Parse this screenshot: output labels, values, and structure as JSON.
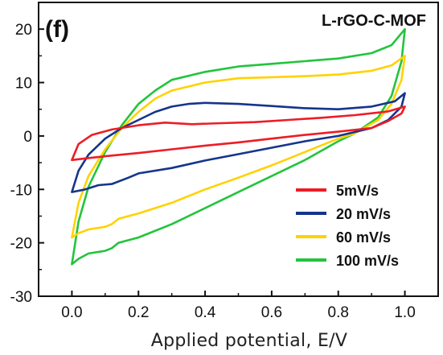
{
  "chart_data": {
    "type": "line",
    "panel_label": "(f)",
    "title": "L-rGO-C-MOF",
    "xlabel": "Applied potential, E/V",
    "ylabel": "",
    "xlim": [
      -0.1,
      1.1
    ],
    "ylim": [
      -30,
      25
    ],
    "x_ticks": [
      "0.0",
      "0.2",
      "0.4",
      "0.6",
      "0.8",
      "1.0"
    ],
    "x_tick_values": [
      0.0,
      0.2,
      0.4,
      0.6,
      0.8,
      1.0
    ],
    "y_ticks": [
      "-30",
      "-20",
      "-10",
      "0",
      "10",
      "20"
    ],
    "y_tick_values": [
      -30,
      -20,
      -10,
      0,
      10,
      20
    ],
    "grid": false,
    "legend_position": "bottom-right",
    "series": [
      {
        "name": "5mV/s",
        "color": "#ee1c25",
        "points": [
          [
            0.0,
            -4.5
          ],
          [
            0.02,
            -1.5
          ],
          [
            0.06,
            0.2
          ],
          [
            0.12,
            1.2
          ],
          [
            0.2,
            2.0
          ],
          [
            0.28,
            2.5
          ],
          [
            0.36,
            2.2
          ],
          [
            0.45,
            2.4
          ],
          [
            0.55,
            2.6
          ],
          [
            0.65,
            3.0
          ],
          [
            0.75,
            3.4
          ],
          [
            0.85,
            3.9
          ],
          [
            0.95,
            4.6
          ],
          [
            1.0,
            5.5
          ],
          [
            0.99,
            4.2
          ],
          [
            0.95,
            2.8
          ],
          [
            0.9,
            1.5
          ],
          [
            0.8,
            0.8
          ],
          [
            0.7,
            0.2
          ],
          [
            0.6,
            -0.5
          ],
          [
            0.5,
            -1.2
          ],
          [
            0.4,
            -1.8
          ],
          [
            0.3,
            -2.5
          ],
          [
            0.2,
            -3.2
          ],
          [
            0.1,
            -3.8
          ],
          [
            0.04,
            -4.2
          ],
          [
            0.0,
            -4.5
          ]
        ]
      },
      {
        "name": "20 mV/s",
        "color": "#14358c",
        "points": [
          [
            0.0,
            -10.5
          ],
          [
            0.02,
            -6.5
          ],
          [
            0.05,
            -3.5
          ],
          [
            0.1,
            -0.5
          ],
          [
            0.15,
            1.5
          ],
          [
            0.2,
            3.0
          ],
          [
            0.25,
            4.5
          ],
          [
            0.3,
            5.5
          ],
          [
            0.35,
            6.0
          ],
          [
            0.4,
            6.2
          ],
          [
            0.5,
            6.0
          ],
          [
            0.6,
            5.6
          ],
          [
            0.7,
            5.2
          ],
          [
            0.8,
            5.0
          ],
          [
            0.9,
            5.5
          ],
          [
            0.97,
            6.5
          ],
          [
            1.0,
            8.0
          ],
          [
            0.99,
            5.5
          ],
          [
            0.95,
            3.0
          ],
          [
            0.9,
            1.5
          ],
          [
            0.8,
            0.0
          ],
          [
            0.7,
            -1.0
          ],
          [
            0.6,
            -2.2
          ],
          [
            0.5,
            -3.4
          ],
          [
            0.4,
            -4.6
          ],
          [
            0.3,
            -6.0
          ],
          [
            0.2,
            -7.0
          ],
          [
            0.17,
            -7.8
          ],
          [
            0.12,
            -9.0
          ],
          [
            0.08,
            -9.2
          ],
          [
            0.04,
            -10.0
          ],
          [
            0.0,
            -10.5
          ]
        ]
      },
      {
        "name": "60 mV/s",
        "color": "#ffd200",
        "points": [
          [
            0.0,
            -19.0
          ],
          [
            0.02,
            -12.5
          ],
          [
            0.05,
            -7.5
          ],
          [
            0.1,
            -2.5
          ],
          [
            0.15,
            1.5
          ],
          [
            0.2,
            4.5
          ],
          [
            0.25,
            7.0
          ],
          [
            0.3,
            8.5
          ],
          [
            0.4,
            10.0
          ],
          [
            0.5,
            10.8
          ],
          [
            0.6,
            11.0
          ],
          [
            0.7,
            11.2
          ],
          [
            0.8,
            11.5
          ],
          [
            0.9,
            12.2
          ],
          [
            0.96,
            13.2
          ],
          [
            1.0,
            15.0
          ],
          [
            0.99,
            10.5
          ],
          [
            0.96,
            6.0
          ],
          [
            0.92,
            3.0
          ],
          [
            0.85,
            0.5
          ],
          [
            0.8,
            -0.5
          ],
          [
            0.7,
            -3.0
          ],
          [
            0.6,
            -5.5
          ],
          [
            0.5,
            -7.8
          ],
          [
            0.4,
            -10.0
          ],
          [
            0.3,
            -12.5
          ],
          [
            0.2,
            -14.5
          ],
          [
            0.14,
            -15.5
          ],
          [
            0.12,
            -16.5
          ],
          [
            0.1,
            -17.0
          ],
          [
            0.05,
            -17.5
          ],
          [
            0.02,
            -18.2
          ],
          [
            0.0,
            -19.0
          ]
        ]
      },
      {
        "name": "100 mV/s",
        "color": "#22c43c",
        "points": [
          [
            0.0,
            -24.0
          ],
          [
            0.02,
            -16.0
          ],
          [
            0.05,
            -9.5
          ],
          [
            0.1,
            -3.0
          ],
          [
            0.15,
            2.0
          ],
          [
            0.2,
            6.0
          ],
          [
            0.25,
            8.5
          ],
          [
            0.3,
            10.5
          ],
          [
            0.4,
            12.0
          ],
          [
            0.5,
            13.0
          ],
          [
            0.6,
            13.5
          ],
          [
            0.7,
            14.0
          ],
          [
            0.8,
            14.5
          ],
          [
            0.9,
            15.5
          ],
          [
            0.96,
            17.0
          ],
          [
            1.0,
            20.0
          ],
          [
            0.99,
            14.0
          ],
          [
            0.96,
            7.5
          ],
          [
            0.92,
            3.5
          ],
          [
            0.85,
            0.5
          ],
          [
            0.8,
            -1.0
          ],
          [
            0.7,
            -4.5
          ],
          [
            0.6,
            -7.5
          ],
          [
            0.5,
            -10.5
          ],
          [
            0.4,
            -13.5
          ],
          [
            0.3,
            -16.5
          ],
          [
            0.2,
            -19.0
          ],
          [
            0.14,
            -20.0
          ],
          [
            0.12,
            -21.0
          ],
          [
            0.1,
            -21.5
          ],
          [
            0.05,
            -22.0
          ],
          [
            0.02,
            -23.0
          ],
          [
            0.0,
            -24.0
          ]
        ]
      }
    ]
  }
}
